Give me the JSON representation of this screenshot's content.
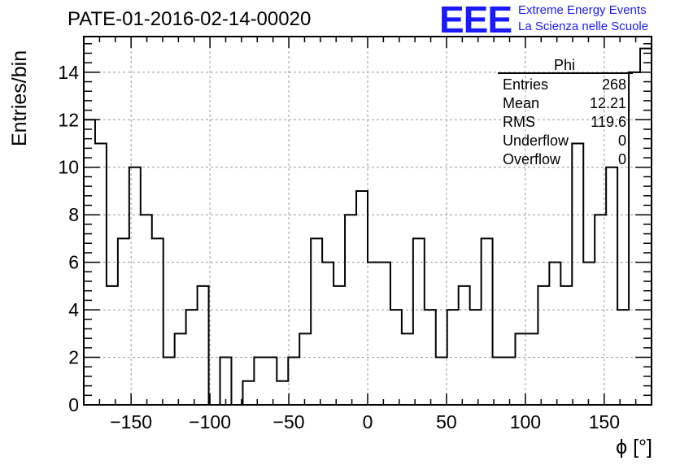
{
  "header": {
    "title": "PATE-01-2016-02-14-00020",
    "logo_text": "EEE",
    "logo_line1": "Extreme Energy Events",
    "logo_line2": "La Scienza nelle Scuole"
  },
  "stats_box": {
    "title": "Phi",
    "rows": [
      {
        "label": "Entries",
        "value": "268"
      },
      {
        "label": "Mean",
        "value": "12.21"
      },
      {
        "label": "RMS",
        "value": "119.6"
      },
      {
        "label": "Underflow",
        "value": "0"
      },
      {
        "label": "Overflow",
        "value": "0"
      }
    ]
  },
  "chart_data": {
    "type": "bar",
    "style": "step-histogram",
    "title": "PATE-01-2016-02-14-00020",
    "xlabel": "ϕ [°]",
    "ylabel": "Entries/bin",
    "xlim": [
      -180,
      180
    ],
    "ylim": [
      0,
      15.5
    ],
    "bin_width": 7.2,
    "x_ticks": [
      -150,
      -100,
      -50,
      0,
      50,
      100,
      150
    ],
    "x_tick_labels": [
      "−150",
      "−100",
      "−50",
      "0",
      "50",
      "100",
      "150"
    ],
    "y_ticks": [
      0,
      2,
      4,
      6,
      8,
      10,
      12,
      14
    ],
    "y_tick_labels": [
      "0",
      "2",
      "4",
      "6",
      "8",
      "10",
      "12",
      "14"
    ],
    "grid": true,
    "values": [
      12,
      11,
      5,
      7,
      10,
      8,
      7,
      2,
      3,
      4,
      5,
      0,
      2,
      0,
      1,
      2,
      2,
      1,
      2,
      3,
      7,
      6,
      5,
      8,
      9,
      6,
      6,
      4,
      3,
      7,
      4,
      2,
      4,
      5,
      4,
      7,
      2,
      2,
      3,
      3,
      5,
      6,
      5,
      11,
      6,
      8,
      10,
      4,
      14,
      15
    ],
    "colors": {
      "line": "#000000",
      "grid": "#999999"
    }
  }
}
